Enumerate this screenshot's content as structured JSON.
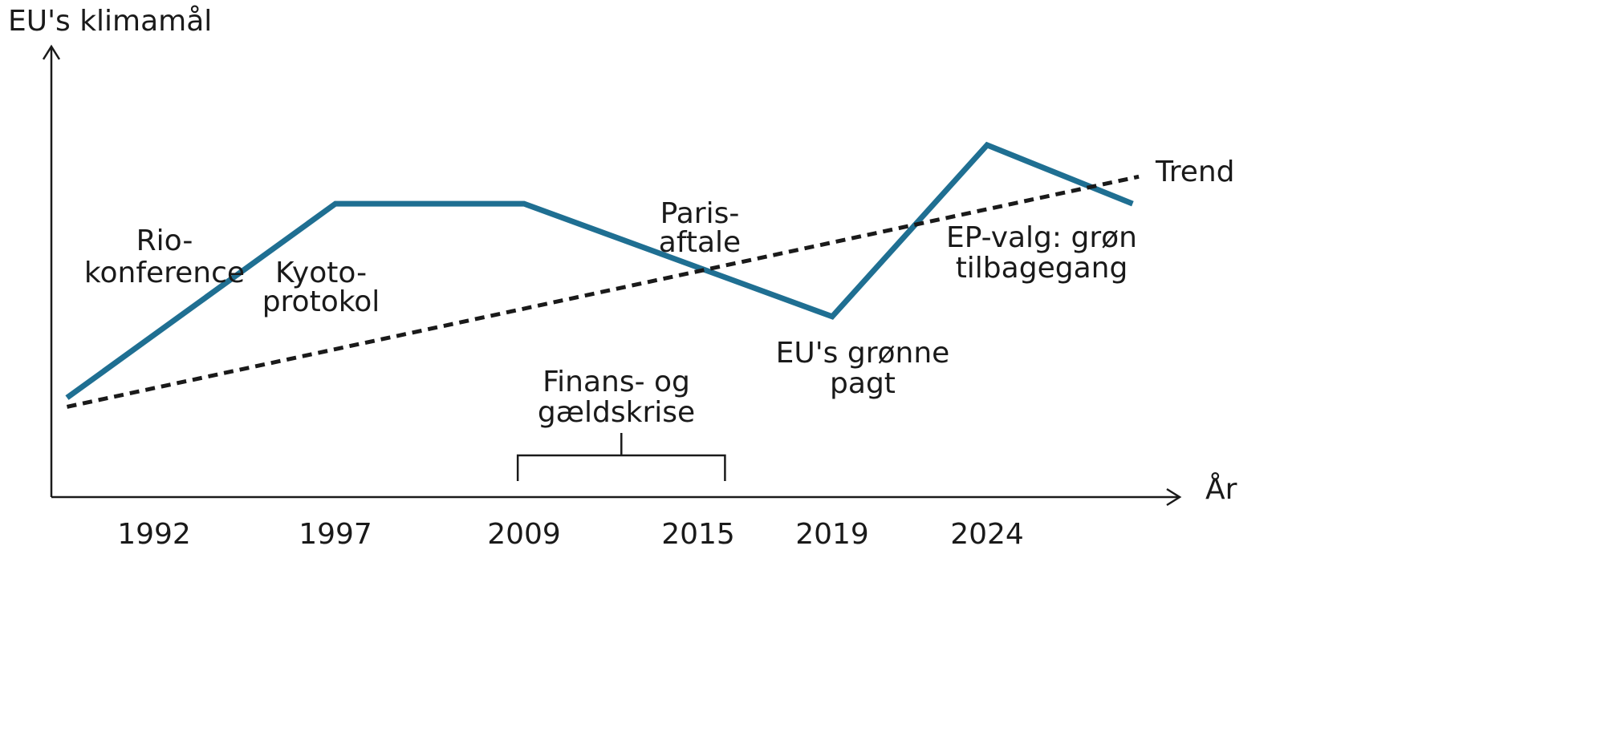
{
  "chart_data": {
    "type": "line",
    "ylabel": "EU's klimamål",
    "xlabel": "År",
    "x_tick_labels": [
      "1992",
      "1997",
      "2009",
      "2015",
      "2019",
      "2024"
    ],
    "y_axis_ticks": "none",
    "grid": false,
    "series": [
      {
        "color": "#1f6f92",
        "style": "solid",
        "points": [
          {
            "x": 1989.6,
            "y": 22
          },
          {
            "x": 1997,
            "y": 65
          },
          {
            "x": 2009,
            "y": 65
          },
          {
            "x": 2019,
            "y": 40
          },
          {
            "x": 2024,
            "y": 78
          },
          {
            "x": 2028.7,
            "y": 65
          }
        ]
      },
      {
        "name": "Trend",
        "color": "#1a1a1a",
        "style": "dotted",
        "points": [
          {
            "x": 1989.6,
            "y": 20
          },
          {
            "x": 2028.9,
            "y": 71
          }
        ]
      }
    ],
    "y_scale": "qualitative (no printed values), 0–100",
    "annotations": {
      "rio": [
        "Rio-",
        "konference"
      ],
      "kyoto": [
        "Kyoto-",
        "protokol"
      ],
      "paris": [
        "Paris-",
        "aftale"
      ],
      "green_deal": [
        "EU's grønne",
        "pagt"
      ],
      "ep_election": [
        "EP-valg: grøn",
        "tilbagegang"
      ],
      "crisis": [
        "Finans- og",
        "gældskrise"
      ]
    },
    "crisis_period": [
      2008.6,
      2015.8
    ]
  }
}
